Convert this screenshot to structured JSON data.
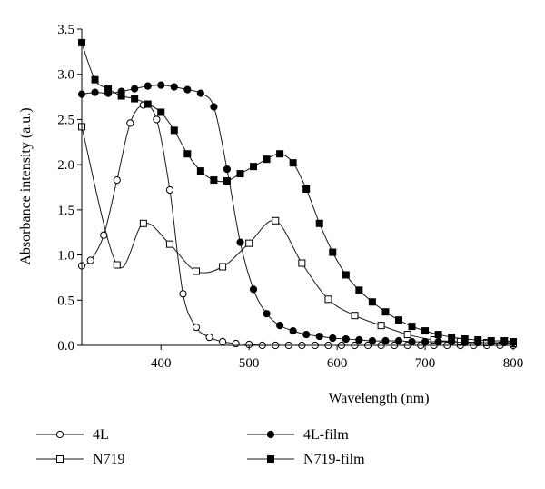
{
  "chart_data": {
    "type": "line",
    "xlabel": "Wavelength (nm)",
    "ylabel": "Absorbance intensity (a.u.)",
    "xlim": [
      310,
      800
    ],
    "ylim": [
      0,
      3.5
    ],
    "xticks": [
      "400",
      "500",
      "600",
      "700",
      "800"
    ],
    "yticks": [
      "0.0",
      "0.5",
      "1.0",
      "1.5",
      "2.0",
      "2.5",
      "3.0",
      "3.5"
    ],
    "legend_position": "bottom",
    "series": [
      {
        "name": "4L",
        "marker": "open-circle",
        "x": [
          310,
          320,
          335,
          350,
          365,
          380,
          395,
          410,
          425,
          440,
          455,
          470,
          485,
          500,
          515,
          530,
          545,
          560,
          575,
          590,
          605,
          620,
          635,
          650,
          665,
          680,
          695,
          710,
          725,
          740,
          755,
          770,
          785,
          800
        ],
        "y": [
          0.88,
          0.94,
          1.22,
          1.83,
          2.46,
          2.66,
          2.5,
          1.72,
          0.57,
          0.2,
          0.09,
          0.04,
          0.02,
          0.01,
          0.0,
          0.0,
          0.0,
          0.0,
          0.0,
          0.0,
          0.0,
          0.0,
          0.0,
          0.0,
          0.0,
          0.0,
          0.0,
          0.0,
          0.0,
          0.0,
          0.0,
          0.0,
          0.0,
          0.0
        ]
      },
      {
        "name": "N719",
        "marker": "open-square",
        "x": [
          310,
          350,
          380,
          410,
          440,
          470,
          500,
          530,
          560,
          590,
          620,
          650,
          680,
          710,
          740,
          770,
          800
        ],
        "y": [
          2.42,
          0.89,
          1.35,
          1.12,
          0.82,
          0.87,
          1.13,
          1.38,
          0.91,
          0.51,
          0.33,
          0.22,
          0.12,
          0.06,
          0.04,
          0.03,
          0.02
        ]
      },
      {
        "name": "4L-film",
        "marker": "filled-circle",
        "x": [
          310,
          325,
          340,
          355,
          370,
          385,
          400,
          415,
          430,
          445,
          460,
          475,
          490,
          505,
          520,
          535,
          550,
          565,
          580,
          595,
          610,
          625,
          640,
          655,
          670,
          685,
          700,
          715,
          730,
          745,
          760,
          775,
          790,
          800
        ],
        "y": [
          2.78,
          2.8,
          2.79,
          2.81,
          2.84,
          2.87,
          2.88,
          2.86,
          2.83,
          2.79,
          2.64,
          1.95,
          1.14,
          0.62,
          0.35,
          0.22,
          0.16,
          0.12,
          0.1,
          0.08,
          0.07,
          0.06,
          0.05,
          0.05,
          0.05,
          0.04,
          0.04,
          0.04,
          0.04,
          0.03,
          0.03,
          0.03,
          0.03,
          0.03
        ]
      },
      {
        "name": "N719-film",
        "marker": "filled-square",
        "x": [
          310,
          325,
          340,
          355,
          370,
          385,
          400,
          415,
          430,
          445,
          460,
          475,
          490,
          505,
          520,
          535,
          550,
          565,
          580,
          595,
          610,
          625,
          640,
          655,
          670,
          685,
          700,
          715,
          730,
          745,
          760,
          775,
          790,
          800
        ],
        "y": [
          3.35,
          2.94,
          2.84,
          2.76,
          2.73,
          2.67,
          2.58,
          2.38,
          2.12,
          1.93,
          1.83,
          1.82,
          1.9,
          1.98,
          2.06,
          2.12,
          2.02,
          1.73,
          1.35,
          1.03,
          0.78,
          0.61,
          0.48,
          0.37,
          0.28,
          0.21,
          0.16,
          0.12,
          0.09,
          0.07,
          0.06,
          0.05,
          0.05,
          0.04
        ]
      }
    ]
  },
  "colors": {
    "axis": "#000000",
    "line": "#1a1a1a",
    "marker_fill_open": "#ffffff",
    "marker_fill_filled": "#000000"
  }
}
